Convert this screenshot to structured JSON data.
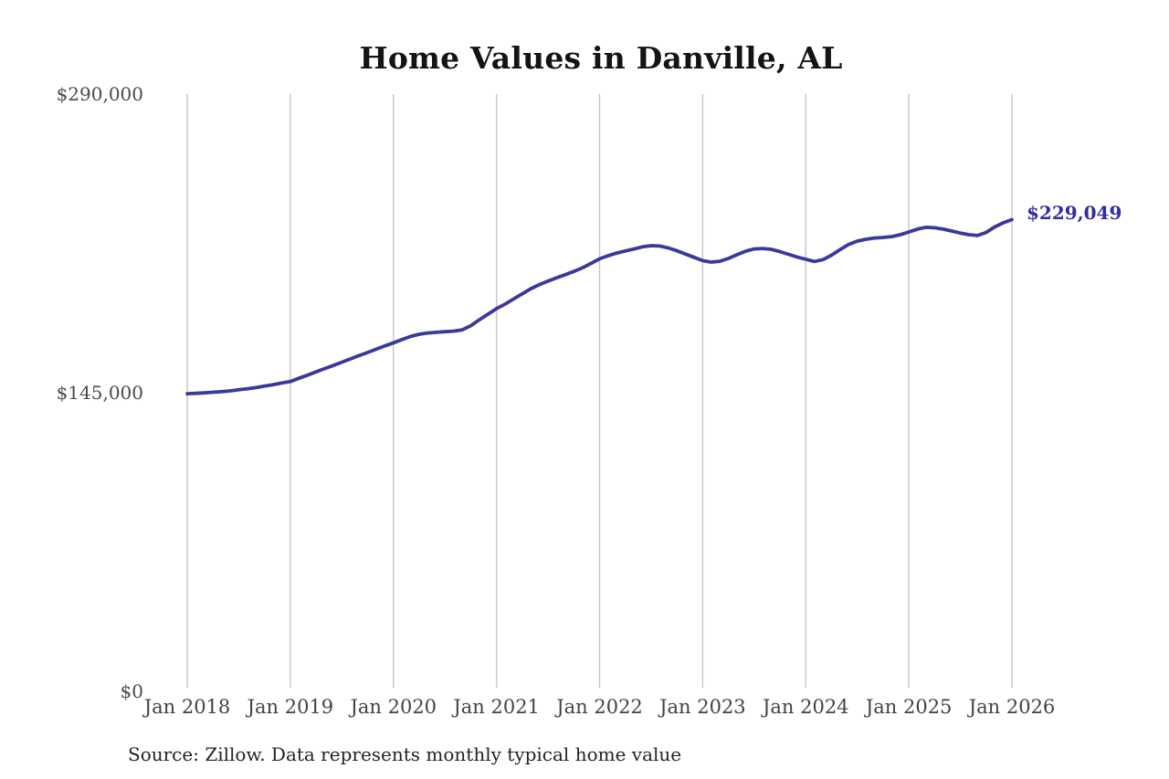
{
  "title": "Home Values in Danville, AL",
  "source_note": "Source: Zillow. Data represents monthly typical home value",
  "latest_value_label": "$229,049",
  "colors": {
    "background": "#ffffff",
    "title_text": "#141414",
    "axis_text": "#4a4a4a",
    "gridline": "#c6c6c6",
    "line": "#3b389c",
    "latest_value_text": "#312e9e",
    "source_text": "#232323"
  },
  "chart_data": {
    "type": "line",
    "title": "Home Values in Danville, AL",
    "series_name": "Monthly typical home value",
    "x_start": "Jan 2018",
    "x_end": "Jan 2026",
    "frequency": "monthly",
    "x_tick_labels": [
      "Jan 2018",
      "Jan 2019",
      "Jan 2020",
      "Jan 2021",
      "Jan 2022",
      "Jan 2023",
      "Jan 2024",
      "Jan 2025",
      "Jan 2026"
    ],
    "y_ticks": [
      {
        "label": "$0",
        "value": 0
      },
      {
        "label": "$145,000",
        "value": 145000
      },
      {
        "label": "$290,000",
        "value": 290000
      }
    ],
    "ylim": [
      0,
      290000
    ],
    "grid": "vertical-only",
    "legend": "none",
    "line_color": "#3b389c",
    "last_value": 229049,
    "last_value_label": "$229,049",
    "values": [
      144500,
      144700,
      144900,
      145200,
      145500,
      145900,
      146400,
      146900,
      147500,
      148200,
      148900,
      149700,
      150400,
      152000,
      153500,
      155100,
      156700,
      158200,
      159800,
      161400,
      163000,
      164500,
      166100,
      167700,
      169200,
      170800,
      172300,
      173400,
      174000,
      174300,
      174600,
      174900,
      175500,
      177500,
      180400,
      183100,
      185800,
      188000,
      190500,
      193000,
      195500,
      197500,
      199200,
      200800,
      202300,
      203900,
      205600,
      207800,
      210000,
      211500,
      212800,
      213800,
      214800,
      215800,
      216400,
      216200,
      215300,
      213900,
      212300,
      210700,
      209100,
      208400,
      208800,
      210200,
      212000,
      213700,
      214800,
      215000,
      214600,
      213500,
      212200,
      210900,
      209800,
      208700,
      209600,
      211800,
      214500,
      217000,
      218600,
      219500,
      220100,
      220400,
      220800,
      221700,
      223000,
      224400,
      225300,
      225100,
      224400,
      223500,
      222500,
      221700,
      221300,
      222800,
      225500,
      227500,
      229049
    ]
  }
}
